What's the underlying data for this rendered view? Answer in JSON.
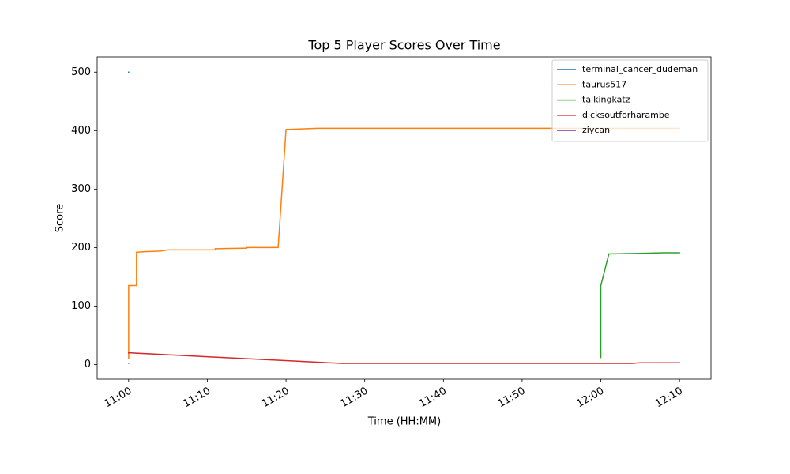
{
  "chart_data": {
    "type": "line",
    "title": "Top 5 Player Scores Over Time",
    "x_label": "Time (HH:MM)",
    "y_label": "Score",
    "xlim": [
      "10:56",
      "12:14"
    ],
    "xticks": [
      "11:00",
      "11:10",
      "11:20",
      "11:30",
      "11:40",
      "11:50",
      "12:00",
      "12:10"
    ],
    "ylim": [
      -25,
      526
    ],
    "yticks": [
      0,
      100,
      200,
      300,
      400,
      500
    ],
    "legend": "upper right",
    "series": [
      {
        "name": "terminal_cancer_dudeman",
        "color": "#1f77b4",
        "x": [
          "11:00",
          "11:00"
        ],
        "values": [
          500,
          500
        ]
      },
      {
        "name": "taurus517",
        "color": "#ff7f0e",
        "x": [
          "11:00",
          "11:00",
          "11:00",
          "11:01",
          "11:01",
          "11:02",
          "11:04",
          "11:05",
          "11:11",
          "11:11",
          "11:15",
          "11:15",
          "11:19",
          "11:20",
          "11:22",
          "11:24",
          "12:10"
        ],
        "values": [
          20,
          10,
          135,
          135,
          192,
          193,
          194,
          196,
          196,
          198,
          199,
          200,
          200,
          402,
          403,
          404,
          404
        ]
      },
      {
        "name": "talkingkatz",
        "color": "#2ca02c",
        "x": [
          "12:00",
          "12:00",
          "12:00",
          "12:01",
          "12:01",
          "12:05",
          "12:08",
          "12:10"
        ],
        "values": [
          12,
          135,
          135,
          188,
          189,
          190,
          191,
          191
        ]
      },
      {
        "name": "dicksoutforharambe",
        "color": "#d62728",
        "x": [
          "11:00",
          "11:27",
          "12:04",
          "12:05",
          "12:10"
        ],
        "values": [
          20,
          2,
          2,
          3,
          3
        ]
      },
      {
        "name": "ziycan",
        "color": "#9467bd",
        "x": [
          "11:00",
          "11:00"
        ],
        "values": [
          2,
          2
        ]
      }
    ]
  }
}
